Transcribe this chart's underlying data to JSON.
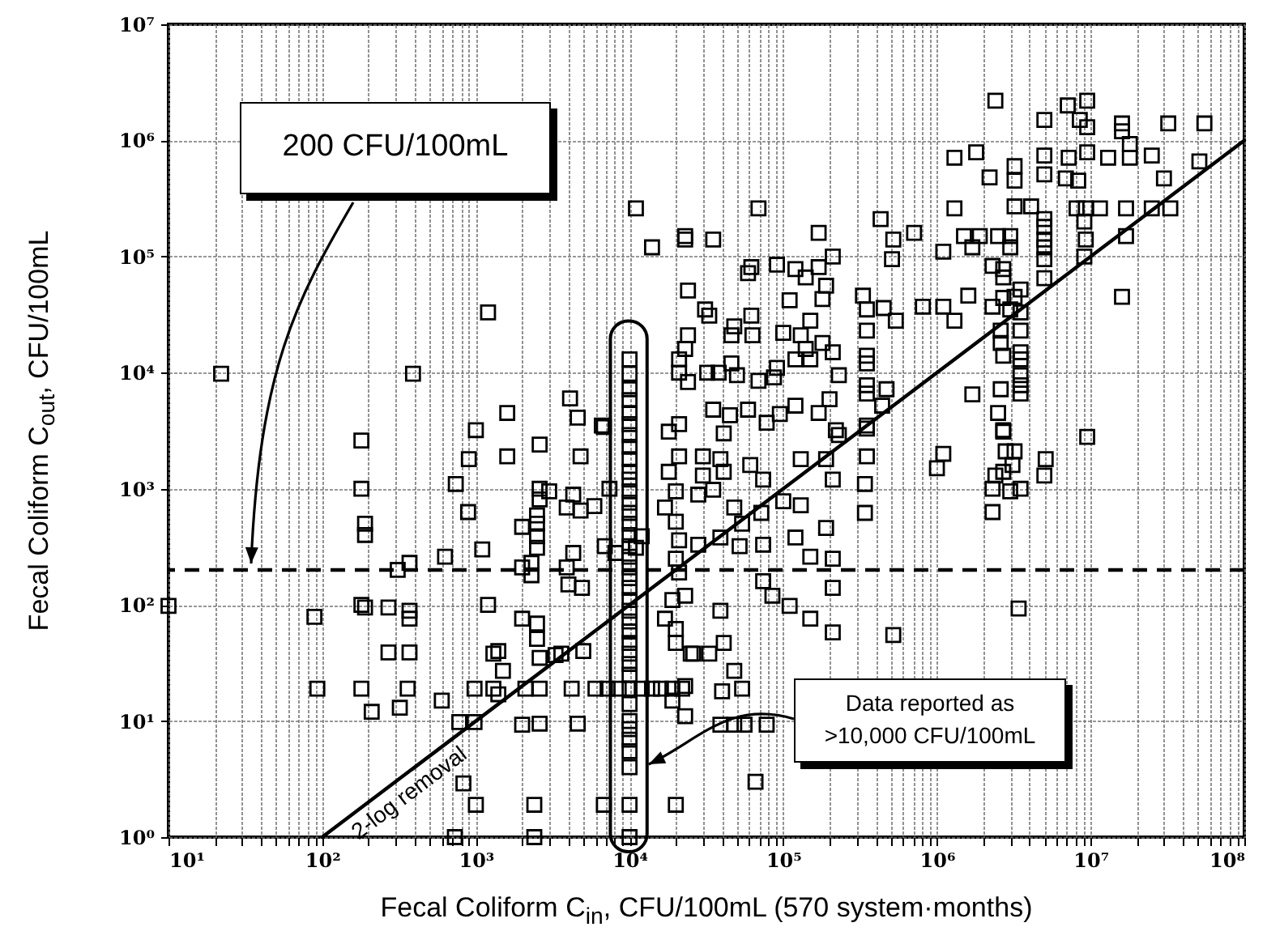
{
  "chart_data": {
    "type": "scatter",
    "xlabel": "Fecal Coliform C$_{in}$, CFU/100mL (570 system·months)",
    "ylabel": "Fecal Coliform C$_{out}$, CFU/100mL",
    "log": "xy",
    "grid": true,
    "xlim": [
      10,
      100000000
    ],
    "ylim": [
      1,
      10000000
    ],
    "xticks": [
      {
        "value": 10,
        "label": "10¹"
      },
      {
        "value": 20,
        "label": null
      },
      {
        "value": 30,
        "label": null
      },
      {
        "value": 40,
        "label": null
      },
      {
        "value": 50,
        "label": null
      },
      {
        "value": 60,
        "label": null
      },
      {
        "value": 70,
        "label": null
      },
      {
        "value": 80,
        "label": null
      },
      {
        "value": 90,
        "label": null
      },
      {
        "value": 100,
        "label": "10²"
      },
      {
        "value": 200,
        "label": null
      },
      {
        "value": 300,
        "label": null
      },
      {
        "value": 400,
        "label": null
      },
      {
        "value": 500,
        "label": null
      },
      {
        "value": 600,
        "label": null
      },
      {
        "value": 700,
        "label": null
      },
      {
        "value": 800,
        "label": null
      },
      {
        "value": 900,
        "label": null
      },
      {
        "value": 1000,
        "label": "10³"
      },
      {
        "value": 2000,
        "label": null
      },
      {
        "value": 3000,
        "label": null
      },
      {
        "value": 4000,
        "label": null
      },
      {
        "value": 5000,
        "label": null
      },
      {
        "value": 6000,
        "label": null
      },
      {
        "value": 7000,
        "label": null
      },
      {
        "value": 8000,
        "label": null
      },
      {
        "value": 9000,
        "label": null
      },
      {
        "value": 10000,
        "label": "10⁴"
      },
      {
        "value": 20000,
        "label": null
      },
      {
        "value": 30000,
        "label": null
      },
      {
        "value": 40000,
        "label": null
      },
      {
        "value": 50000,
        "label": null
      },
      {
        "value": 60000,
        "label": null
      },
      {
        "value": 70000,
        "label": null
      },
      {
        "value": 80000,
        "label": null
      },
      {
        "value": 90000,
        "label": null
      },
      {
        "value": 100000,
        "label": "10⁵"
      },
      {
        "value": 200000,
        "label": null
      },
      {
        "value": 300000,
        "label": null
      },
      {
        "value": 400000,
        "label": null
      },
      {
        "value": 500000,
        "label": null
      },
      {
        "value": 600000,
        "label": null
      },
      {
        "value": 700000,
        "label": null
      },
      {
        "value": 800000,
        "label": null
      },
      {
        "value": 900000,
        "label": null
      },
      {
        "value": 1000000,
        "label": "10⁶"
      },
      {
        "value": 2000000,
        "label": null
      },
      {
        "value": 3000000,
        "label": null
      },
      {
        "value": 4000000,
        "label": null
      },
      {
        "value": 5000000,
        "label": null
      },
      {
        "value": 6000000,
        "label": null
      },
      {
        "value": 7000000,
        "label": null
      },
      {
        "value": 8000000,
        "label": null
      },
      {
        "value": 9000000,
        "label": null
      },
      {
        "value": 10000000,
        "label": "10⁷"
      },
      {
        "value": 20000000,
        "label": null
      },
      {
        "value": 30000000,
        "label": null
      },
      {
        "value": 40000000,
        "label": null
      },
      {
        "value": 50000000,
        "label": null
      },
      {
        "value": 60000000,
        "label": null
      },
      {
        "value": 70000000,
        "label": null
      },
      {
        "value": 80000000,
        "label": null
      },
      {
        "value": 90000000,
        "label": null
      },
      {
        "value": 100000000,
        "label": "10⁸"
      }
    ],
    "yticks": [
      {
        "value": 1,
        "label": "10⁰"
      },
      {
        "value": 10,
        "label": "10¹"
      },
      {
        "value": 100,
        "label": "10²"
      },
      {
        "value": 1000,
        "label": "10³"
      },
      {
        "value": 10000,
        "label": "10⁴"
      },
      {
        "value": 100000,
        "label": "10⁵"
      },
      {
        "value": 1000000,
        "label": "10⁶"
      },
      {
        "value": 10000000,
        "label": "10⁷"
      }
    ],
    "series": [
      {
        "color": "#000000",
        "marker": "square",
        "x": [
          11000,
          14000,
          23000,
          24000,
          1200,
          22,
          390,
          10000,
          10000,
          10000,
          10000,
          10000,
          10000,
          21000,
          21000,
          24000,
          24000,
          4100,
          4600,
          6600,
          18000,
          21000,
          2400000,
          5000000,
          7100000,
          9500000,
          8500000,
          9500000,
          16000000,
          16000000,
          18000000,
          32000000,
          55000000,
          1300000,
          1800000,
          3200000,
          2200000,
          3200000,
          5000000,
          5000000,
          7200000,
          9500000,
          13000000,
          18000000,
          25000000,
          6900000,
          8300000,
          30000000,
          51000000,
          1300000,
          3200000,
          4100000,
          5000000,
          5000000,
          5000000,
          5000000,
          5000000,
          5000000,
          8100000,
          9300000,
          11500000,
          17000000,
          25000000,
          33000000,
          9100000,
          9300000,
          9100000,
          17000000,
          16000000,
          69000,
          23000,
          35000,
          170000,
          210000,
          430000,
          520000,
          510000,
          710000,
          1100000,
          1500000,
          1700000,
          1900000,
          2500000,
          3000000,
          3000000,
          2300000,
          2700000,
          2700000,
          3500000,
          3200000,
          2700000,
          2300000,
          3500000,
          3000000,
          2600000,
          3500000,
          2600000,
          2700000,
          3500000,
          3500000,
          3500000,
          3500000,
          3500000,
          1700000,
          2600000,
          2500000,
          2700000,
          1600000,
          1100000,
          1300000,
          810000,
          330000,
          350000,
          350000,
          350000,
          350000,
          350000,
          350000,
          350000,
          450000,
          540000,
          470000,
          440000,
          23000,
          31000,
          33000,
          62000,
          59000,
          91000,
          120000,
          140000,
          170000,
          190000,
          180000,
          110000,
          150000,
          100000,
          130000,
          180000,
          210000,
          140000,
          120000,
          150000,
          48000,
          62000,
          63000,
          46000,
          32000,
          38000,
          46000,
          50000,
          69000,
          91000,
          87000,
          230000,
          200000,
          170000,
          120000,
          95000,
          78000,
          59000,
          45000,
          35000,
          41000,
          220000,
          9500000,
          2700000,
          2800000,
          3200000,
          3100000,
          2700000,
          2400000,
          2300000,
          3000000,
          3500000,
          2300000,
          5100000,
          5000000,
          1100000,
          1000000,
          3400000,
          520000,
          350000,
          350000,
          340000,
          340000,
          230000,
          190000,
          210000,
          190000,
          210000,
          210000,
          210000,
          150000,
          150000,
          110000,
          120000,
          130000,
          130000,
          100000,
          85000,
          74000,
          74000,
          72000,
          74000,
          61000,
          48000,
          39000,
          41000,
          54000,
          52000,
          39000,
          28000,
          30000,
          30000,
          28000,
          35000,
          39000,
          41000,
          33000,
          26000,
          48000,
          54000,
          40000,
          23000,
          23000,
          66000,
          39000,
          48000,
          56000,
          78000,
          2600,
          1600,
          4800,
          6800,
          180,
          740,
          2600,
          3000,
          2600,
          4300,
          3900,
          4800,
          5900,
          7400,
          2500,
          2000,
          2500,
          2500,
          2500,
          2000,
          2300,
          2300,
          190,
          190,
          1100,
          630,
          370,
          310,
          4300,
          3900,
          4000,
          4900,
          6900,
          8100,
          11000,
          12000,
          10,
          89,
          180,
          190,
          270,
          370,
          370,
          1200,
          2000,
          2500,
          2500,
          3600,
          3300,
          5000,
          2600,
          1300,
          1400,
          1500,
          270,
          370,
          93,
          180,
          360,
          600,
          980,
          1300,
          1400,
          2100,
          2600,
          4200,
          6000,
          7200,
          8500,
          10000,
          12000,
          14000,
          16000,
          19000,
          22000,
          210,
          320,
          780,
          980,
          2000,
          2600,
          4600,
          830,
          1000,
          2400,
          6800,
          20000,
          730,
          2400,
          10000,
          10000,
          10000,
          10000,
          10000,
          10000,
          10000,
          10000,
          10000,
          10000,
          10000,
          10000,
          10000,
          10000,
          10000,
          10000,
          10000,
          10000,
          10000,
          10000,
          10000,
          10000,
          10000,
          10000,
          10000,
          10000,
          10000,
          10000,
          10000,
          10000,
          10000,
          21000,
          18000,
          20000,
          17000,
          20000,
          21000,
          20000,
          21000,
          19000,
          17000,
          20000,
          20000,
          25000,
          23000,
          19000,
          180,
          1600,
          1000,
          900,
          890
        ],
        "values": [
          260000,
          120000,
          150000,
          51000,
          33000,
          9800,
          9800,
          13000,
          9800,
          7200,
          5800,
          4500,
          3600,
          13000,
          10000,
          21000,
          8300,
          6000,
          4100,
          3500,
          3100,
          3600,
          2200000,
          1500000,
          2000000,
          2200000,
          1500000,
          1300000,
          1400000,
          1200000,
          930000,
          1400000,
          1400000,
          710000,
          790000,
          600000,
          480000,
          450000,
          740000,
          510000,
          710000,
          790000,
          710000,
          710000,
          740000,
          470000,
          450000,
          470000,
          660000,
          260000,
          270000,
          270000,
          210000,
          180000,
          140000,
          120000,
          95000,
          65000,
          260000,
          260000,
          260000,
          260000,
          260000,
          260000,
          200000,
          140000,
          100000,
          150000,
          45000,
          260000,
          140000,
          140000,
          160000,
          100000,
          210000,
          140000,
          95000,
          160000,
          110000,
          150000,
          120000,
          150000,
          150000,
          150000,
          120000,
          83000,
          78000,
          66000,
          52000,
          45000,
          44000,
          37000,
          33000,
          35000,
          23000,
          23000,
          18000,
          14000,
          15000,
          13000,
          9500,
          7800,
          6600,
          6500,
          7200,
          4500,
          3200,
          46000,
          37000,
          28000,
          37000,
          46000,
          35000,
          23000,
          14000,
          12000,
          7800,
          6600,
          3500,
          36000,
          28000,
          7200,
          5200,
          16000,
          35000,
          31000,
          81000,
          72000,
          85000,
          78000,
          66000,
          81000,
          56000,
          43000,
          42000,
          28000,
          22000,
          21000,
          18000,
          15000,
          16000,
          13000,
          13000,
          25000,
          31000,
          21000,
          21000,
          10000,
          10000,
          12000,
          9500,
          8500,
          11000,
          9100,
          9500,
          5900,
          4500,
          5200,
          4400,
          3700,
          4800,
          4300,
          4800,
          3000,
          3200,
          2800,
          3100,
          2100,
          2100,
          1600,
          1400,
          1300,
          1000,
          950,
          1000,
          630,
          1800,
          1300,
          2000,
          1500,
          93,
          55,
          3300,
          1900,
          1100,
          620,
          2900,
          1800,
          1200,
          460,
          250,
          140,
          58,
          260,
          76,
          98,
          380,
          720,
          1800,
          780,
          120,
          330,
          160,
          620,
          1200,
          1600,
          690,
          1800,
          1400,
          500,
          320,
          380,
          330,
          1900,
          1300,
          890,
          980,
          89,
          47,
          38,
          38,
          27,
          19,
          18,
          20,
          11,
          3,
          9.3,
          9.3,
          9.3,
          9.3,
          2400,
          1900,
          1900,
          3400,
          1000,
          1100,
          1000,
          950,
          810,
          890,
          690,
          650,
          710,
          1000,
          590,
          470,
          500,
          390,
          310,
          210,
          230,
          180,
          500,
          400,
          300,
          260,
          230,
          200,
          280,
          210,
          150,
          140,
          320,
          280,
          310,
          390,
          98,
          79,
          100,
          95,
          95,
          89,
          76,
          100,
          76,
          69,
          51,
          38,
          37,
          40,
          35,
          38,
          40,
          27,
          39,
          39,
          19,
          19,
          19,
          15,
          19,
          19,
          17,
          19,
          19,
          19,
          19,
          19,
          19,
          19,
          19,
          19,
          19,
          19,
          19,
          12,
          13,
          9.8,
          9.8,
          9.3,
          9.5,
          9.5,
          2.9,
          1.9,
          1.9,
          1.9,
          1.9,
          1,
          1,
          2900,
          2300,
          1800,
          1400,
          1200,
          950,
          760,
          620,
          500,
          400,
          320,
          260,
          210,
          170,
          140,
          110,
          89,
          72,
          59,
          47,
          38,
          31,
          25,
          14,
          10,
          8.5,
          6.9,
          5.5,
          4,
          1.9,
          1,
          1900,
          1400,
          950,
          690,
          520,
          360,
          250,
          190,
          15,
          76,
          62,
          47,
          38,
          120,
          110,
          2600,
          4500,
          3200,
          1800,
          630
        ]
      },
      {
        "type": "line",
        "name": "2-log removal",
        "color": "#000000",
        "x": [
          100,
          100000000
        ],
        "values": [
          1,
          1000000
        ]
      }
    ],
    "ref_lines": [
      {
        "axis": "y",
        "value": 200,
        "label": "200 CFU/100mL",
        "line_style": "dashed",
        "color": "#000000"
      }
    ],
    "bands": [
      {
        "axis": "x",
        "from": 7500,
        "to": 13000
      }
    ],
    "annotations": [
      "Data reported as >10,000 CFU/100mL"
    ]
  }
}
